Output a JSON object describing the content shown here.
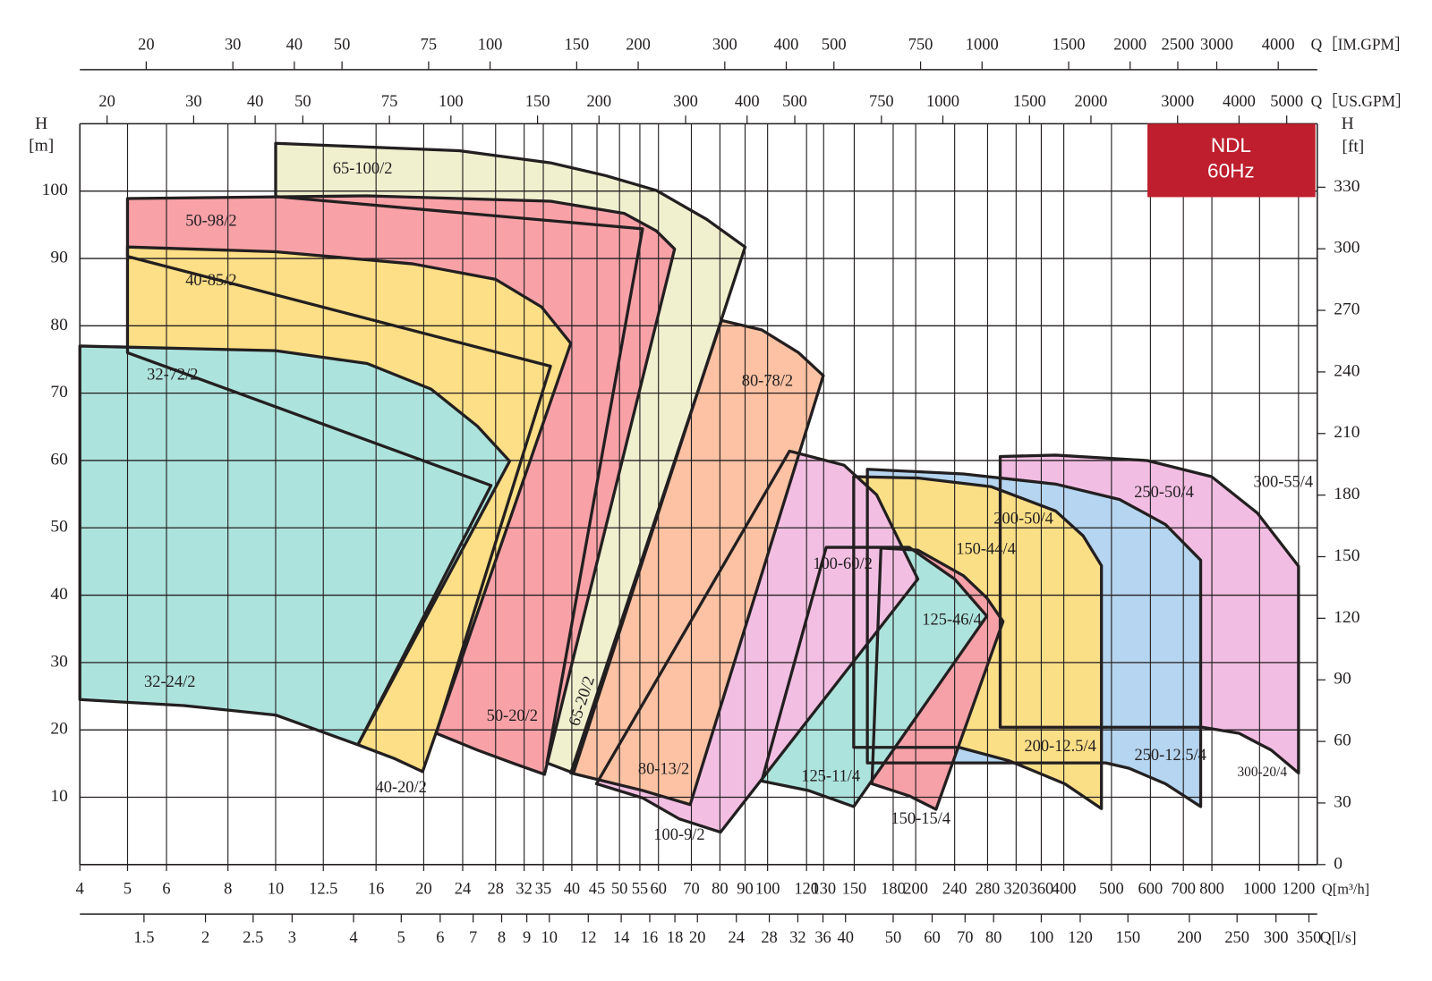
{
  "chart_data": {
    "type": "region",
    "xscale": "log",
    "grid": true,
    "xlabel": "Q[m³/h]",
    "xlim": [
      4,
      1310
    ],
    "xticks": [
      4,
      5,
      6,
      8,
      10,
      12.5,
      16,
      20,
      24,
      28,
      32,
      35,
      40,
      45,
      50,
      55,
      60,
      70,
      80,
      90,
      100,
      120,
      130,
      150,
      180,
      200,
      240,
      280,
      320,
      360,
      400,
      500,
      600,
      700,
      800,
      1000,
      1200
    ],
    "ylabel": "H",
    "yunit": "[m]",
    "ylim": [
      0,
      110
    ],
    "yticks": [
      10,
      20,
      30,
      40,
      50,
      60,
      70,
      80,
      90,
      100
    ],
    "y2label": "H",
    "y2unit": "[ft]",
    "y2lim": [
      0,
      360.9
    ],
    "y2ticks": [
      0,
      30,
      60,
      90,
      120,
      150,
      180,
      210,
      240,
      270,
      300,
      330
    ],
    "extra_x_axes": [
      {
        "label": "Q［IM.GPM］",
        "xlim": [
          14.66,
          4802
        ],
        "xticks": [
          20,
          30,
          40,
          50,
          75,
          100,
          150,
          200,
          300,
          400,
          500,
          750,
          1000,
          1500,
          2000,
          2500,
          3000,
          4000
        ]
      },
      {
        "label": "Q［US.GPM］",
        "xlim": [
          17.61,
          5768
        ],
        "xticks": [
          20,
          30,
          40,
          50,
          75,
          100,
          150,
          200,
          300,
          400,
          500,
          750,
          1000,
          1500,
          2000,
          3000,
          4000,
          5000
        ]
      },
      {
        "label": "Q[l/s]",
        "xlim": [
          1.111,
          363.9
        ],
        "xticks": [
          1.5,
          2,
          2.5,
          3,
          4,
          5,
          6,
          7,
          8,
          9,
          10,
          12,
          14,
          16,
          18,
          20,
          24,
          28,
          32,
          36,
          40,
          50,
          60,
          70,
          80,
          100,
          120,
          150,
          200,
          250,
          300,
          350
        ]
      }
    ],
    "badge": [
      "NDL",
      "60Hz"
    ],
    "series": [
      {
        "name": "300-55/4",
        "min_name": "300-20/4",
        "color": "#f2bde3",
        "x": [
          297,
          385,
          591,
          799,
          990,
          1200,
          1200,
          1056,
          908,
          765,
          297
        ],
        "values": [
          60.6,
          60.8,
          60.0,
          57.6,
          52.2,
          44.3,
          13.6,
          17.0,
          19.5,
          20.4,
          20.4
        ]
      },
      {
        "name": "250-50/4",
        "min_name": "250-12.5/4",
        "color": "#b5d5f0",
        "x": [
          159.5,
          250,
          385,
          520,
          644,
          759,
          759,
          644,
          543,
          487,
          159.5
        ],
        "values": [
          58.7,
          58.0,
          56.5,
          54.2,
          50.5,
          45.2,
          8.6,
          12.0,
          14.3,
          15.1,
          15.1
        ]
      },
      {
        "name": "200-50/4",
        "min_name": "200-12.5/4",
        "color": "#fbdf87",
        "x": [
          149.6,
          202,
          285,
          385,
          438,
          477,
          477,
          402,
          310,
          245,
          149.6
        ],
        "values": [
          57.6,
          57.4,
          56.1,
          52.5,
          48.8,
          44.4,
          8.3,
          12.0,
          15.4,
          17.4,
          17.4
        ]
      },
      {
        "name": "150-44/4",
        "min_name": "150-15/4",
        "color": "#f6a1a8",
        "x": [
          170,
          202,
          250,
          279,
          301,
          220,
          194,
          163
        ],
        "values": [
          47.0,
          46.7,
          42.9,
          39.6,
          36.1,
          8.2,
          10.2,
          12.0
        ]
      },
      {
        "name": "125-46/4",
        "min_name": "125-11/4",
        "color": "#ade3dd",
        "x": [
          131.6,
          194,
          240,
          279,
          149.6,
          121,
          97.3
        ],
        "values": [
          47.1,
          47.1,
          42.4,
          36.9,
          8.6,
          11.0,
          12.4
        ]
      },
      {
        "name": "100-60/2",
        "min_name": "100-9/2",
        "color": "#f2bfe3",
        "x": [
          110.8,
          143,
          166.6,
          185,
          202,
          80.2,
          66.1,
          55.7,
          44.9
        ],
        "values": [
          61.4,
          59.3,
          54.9,
          48.1,
          42.4,
          4.8,
          6.8,
          9.9,
          12.0
        ]
      },
      {
        "name": "65-100/2",
        "min_name": "65-20/2",
        "color": "#f0f0cf",
        "x": [
          10,
          23.6,
          36.2,
          46.9,
          59.4,
          75.2,
          90,
          40.3,
          35.6,
          55.7,
          10
        ],
        "values": [
          107.1,
          106.0,
          104.2,
          102.3,
          100.1,
          95.8,
          91.7,
          13.6,
          15.1,
          94.4,
          99.2
        ]
      },
      {
        "name": "80-78/2",
        "min_name": "80-13/2",
        "color": "#fcc2a3",
        "x": [
          80.6,
          97.3,
          115.6,
          129.8,
          69.6,
          55.7,
          39.8
        ],
        "values": [
          80.8,
          79.4,
          76.0,
          72.6,
          8.9,
          11.0,
          13.6
        ]
      },
      {
        "name": "50-98/2",
        "min_name": "50-20/2",
        "color": "#f8a2a8",
        "x": [
          5.0,
          15.35,
          36.2,
          51.1,
          59.4,
          64.7,
          35.2,
          30.5,
          25.7,
          21.2,
          36.2,
          5.0
        ],
        "values": [
          98.9,
          99.3,
          98.5,
          96.7,
          94.1,
          91.4,
          13.4,
          15.0,
          17.0,
          19.5,
          74.0,
          90.3
        ]
      },
      {
        "name": "40-85/2",
        "min_name": "40-20/2",
        "color": "#fcdf86",
        "x": [
          5.0,
          10,
          19.0,
          28.0,
          34.7,
          39.8,
          19.9,
          17.5,
          14.7,
          27.4,
          5.0
        ],
        "values": [
          91.7,
          91.0,
          89.2,
          86.9,
          82.8,
          77.4,
          13.8,
          15.7,
          17.8,
          56.3,
          76.0
        ]
      },
      {
        "name": "32-72/2",
        "min_name": "32-24/2",
        "color": "#ade3dd",
        "x": [
          4,
          10,
          15.35,
          20.7,
          25.7,
          29.9,
          14.7,
          10,
          6.5,
          4
        ],
        "values": [
          77.0,
          76.3,
          74.4,
          70.6,
          65.1,
          59.9,
          17.8,
          22.2,
          23.6,
          24.5
        ]
      }
    ]
  }
}
